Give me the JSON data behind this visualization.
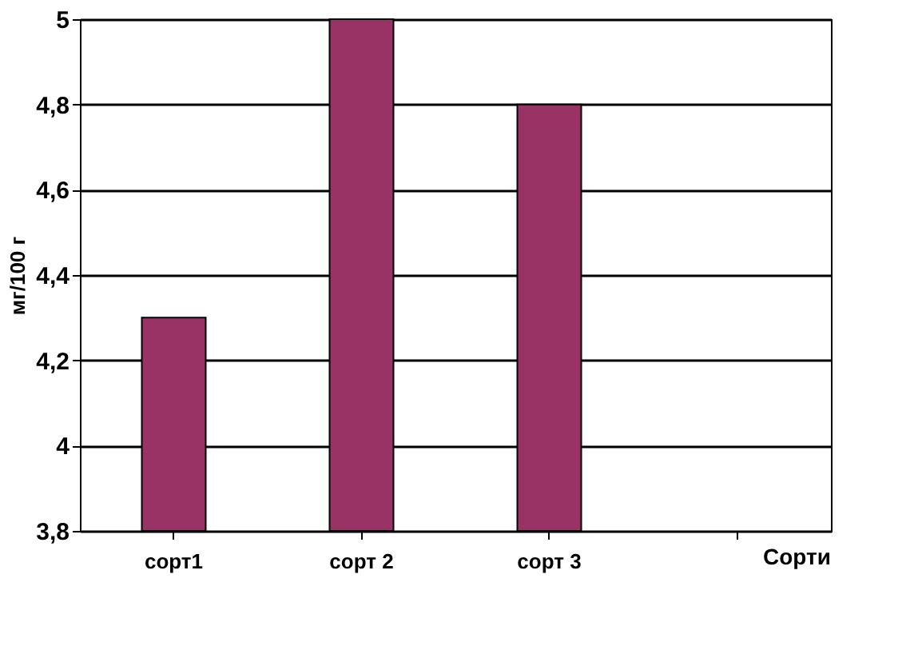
{
  "chart_data": {
    "type": "bar",
    "ylabel": "мг/100 г",
    "annotations": [
      "Сорти"
    ],
    "categories": [
      "сорт1",
      "сорт 2",
      "сорт 3"
    ],
    "values": [
      4.3,
      5.0,
      4.8
    ],
    "color": "#993366",
    "ylim": [
      3.8,
      5
    ],
    "yticks": [
      {
        "value": 3.8,
        "label": "3,8"
      },
      4,
      {
        "value": 4.2,
        "label": "4,2"
      },
      {
        "value": 4.4,
        "label": "4,4"
      },
      {
        "value": 4.6,
        "label": "4,6"
      },
      {
        "value": 4.8,
        "label": "4,8"
      },
      5
    ],
    "grid": "y"
  }
}
